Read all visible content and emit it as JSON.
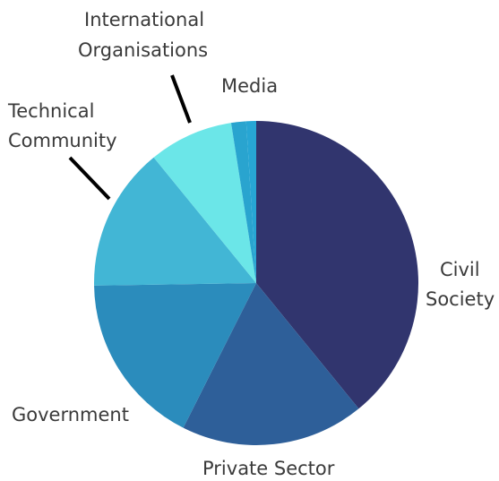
{
  "chart_data": {
    "type": "pie",
    "title": "",
    "slices": [
      {
        "label": "Civil Society",
        "value": 39.5,
        "color": "#31356e"
      },
      {
        "label": "Private Sector",
        "value": 18.5,
        "color": "#2e5f99"
      },
      {
        "label": "Government",
        "value": 17.5,
        "color": "#2b8cbc"
      },
      {
        "label": "Technical Community",
        "value": 14.5,
        "color": "#42b6d5"
      },
      {
        "label": "International Organisations",
        "value": 8.5,
        "color": "#6be6e8"
      },
      {
        "label": "Media",
        "value": 1.5,
        "color": "#29a4cf"
      }
    ],
    "extra_slice": {
      "value": 1.0,
      "color": "#27a6d4"
    },
    "labels_text": {
      "civil_line1": "Civil",
      "civil_line2": "Society",
      "private": "Private Sector",
      "government": "Government",
      "technical_line1": "Technical",
      "technical_line2": "Community",
      "international_line1": "International",
      "international_line2": "Organisations",
      "media": "Media"
    },
    "legend": "none",
    "leader_lines": [
      "Technical Community",
      "International Organisations"
    ]
  }
}
